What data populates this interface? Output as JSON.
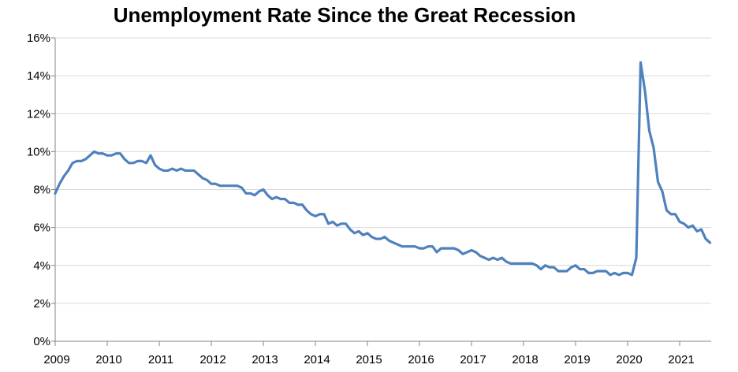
{
  "chart_data": {
    "type": "line",
    "title": "Unemployment Rate Since the Great Recession",
    "xlabel": "",
    "ylabel": "",
    "x_tick_labels": [
      "2009",
      "2010",
      "2011",
      "2012",
      "2013",
      "2014",
      "2015",
      "2016",
      "2017",
      "2018",
      "2019",
      "2020",
      "2021"
    ],
    "y_tick_labels": [
      "0%",
      "2%",
      "4%",
      "6%",
      "8%",
      "10%",
      "12%",
      "14%",
      "16%"
    ],
    "ylim": [
      0,
      16
    ],
    "xlim": [
      "2009-01",
      "2021-08"
    ],
    "grid": true,
    "legend": "none",
    "series": [
      {
        "color": "#4F81BD",
        "x": [
          "2009-01",
          "2009-02",
          "2009-03",
          "2009-04",
          "2009-05",
          "2009-06",
          "2009-07",
          "2009-08",
          "2009-09",
          "2009-10",
          "2009-11",
          "2009-12",
          "2010-01",
          "2010-02",
          "2010-03",
          "2010-04",
          "2010-05",
          "2010-06",
          "2010-07",
          "2010-08",
          "2010-09",
          "2010-10",
          "2010-11",
          "2010-12",
          "2011-01",
          "2011-02",
          "2011-03",
          "2011-04",
          "2011-05",
          "2011-06",
          "2011-07",
          "2011-08",
          "2011-09",
          "2011-10",
          "2011-11",
          "2011-12",
          "2012-01",
          "2012-02",
          "2012-03",
          "2012-04",
          "2012-05",
          "2012-06",
          "2012-07",
          "2012-08",
          "2012-09",
          "2012-10",
          "2012-11",
          "2012-12",
          "2013-01",
          "2013-02",
          "2013-03",
          "2013-04",
          "2013-05",
          "2013-06",
          "2013-07",
          "2013-08",
          "2013-09",
          "2013-10",
          "2013-11",
          "2013-12",
          "2014-01",
          "2014-02",
          "2014-03",
          "2014-04",
          "2014-05",
          "2014-06",
          "2014-07",
          "2014-08",
          "2014-09",
          "2014-10",
          "2014-11",
          "2014-12",
          "2015-01",
          "2015-02",
          "2015-03",
          "2015-04",
          "2015-05",
          "2015-06",
          "2015-07",
          "2015-08",
          "2015-09",
          "2015-10",
          "2015-11",
          "2015-12",
          "2016-01",
          "2016-02",
          "2016-03",
          "2016-04",
          "2016-05",
          "2016-06",
          "2016-07",
          "2016-08",
          "2016-09",
          "2016-10",
          "2016-11",
          "2016-12",
          "2017-01",
          "2017-02",
          "2017-03",
          "2017-04",
          "2017-05",
          "2017-06",
          "2017-07",
          "2017-08",
          "2017-09",
          "2017-10",
          "2017-11",
          "2017-12",
          "2018-01",
          "2018-02",
          "2018-03",
          "2018-04",
          "2018-05",
          "2018-06",
          "2018-07",
          "2018-08",
          "2018-09",
          "2018-10",
          "2018-11",
          "2018-12",
          "2019-01",
          "2019-02",
          "2019-03",
          "2019-04",
          "2019-05",
          "2019-06",
          "2019-07",
          "2019-08",
          "2019-09",
          "2019-10",
          "2019-11",
          "2019-12",
          "2020-01",
          "2020-02",
          "2020-03",
          "2020-04",
          "2020-05",
          "2020-06",
          "2020-07",
          "2020-08",
          "2020-09",
          "2020-10",
          "2020-11",
          "2020-12",
          "2021-01",
          "2021-02",
          "2021-03",
          "2021-04",
          "2021-05",
          "2021-06",
          "2021-07",
          "2021-08"
        ],
        "values": [
          7.8,
          8.3,
          8.7,
          9.0,
          9.4,
          9.5,
          9.5,
          9.6,
          9.8,
          10.0,
          9.9,
          9.9,
          9.8,
          9.8,
          9.9,
          9.9,
          9.6,
          9.4,
          9.4,
          9.5,
          9.5,
          9.4,
          9.8,
          9.3,
          9.1,
          9.0,
          9.0,
          9.1,
          9.0,
          9.1,
          9.0,
          9.0,
          9.0,
          8.8,
          8.6,
          8.5,
          8.3,
          8.3,
          8.2,
          8.2,
          8.2,
          8.2,
          8.2,
          8.1,
          7.8,
          7.8,
          7.7,
          7.9,
          8.0,
          7.7,
          7.5,
          7.6,
          7.5,
          7.5,
          7.3,
          7.3,
          7.2,
          7.2,
          6.9,
          6.7,
          6.6,
          6.7,
          6.7,
          6.2,
          6.3,
          6.1,
          6.2,
          6.2,
          5.9,
          5.7,
          5.8,
          5.6,
          5.7,
          5.5,
          5.4,
          5.4,
          5.5,
          5.3,
          5.2,
          5.1,
          5.0,
          5.0,
          5.0,
          5.0,
          4.9,
          4.9,
          5.0,
          5.0,
          4.7,
          4.9,
          4.9,
          4.9,
          4.9,
          4.8,
          4.6,
          4.7,
          4.8,
          4.7,
          4.5,
          4.4,
          4.3,
          4.4,
          4.3,
          4.4,
          4.2,
          4.1,
          4.1,
          4.1,
          4.1,
          4.1,
          4.1,
          4.0,
          3.8,
          4.0,
          3.9,
          3.9,
          3.7,
          3.7,
          3.7,
          3.9,
          4.0,
          3.8,
          3.8,
          3.6,
          3.6,
          3.7,
          3.7,
          3.7,
          3.5,
          3.6,
          3.5,
          3.6,
          3.6,
          3.5,
          4.4,
          14.7,
          13.2,
          11.1,
          10.2,
          8.4,
          7.9,
          6.9,
          6.7,
          6.7,
          6.3,
          6.2,
          6.0,
          6.1,
          5.8,
          5.9,
          5.4,
          5.2
        ]
      }
    ]
  }
}
